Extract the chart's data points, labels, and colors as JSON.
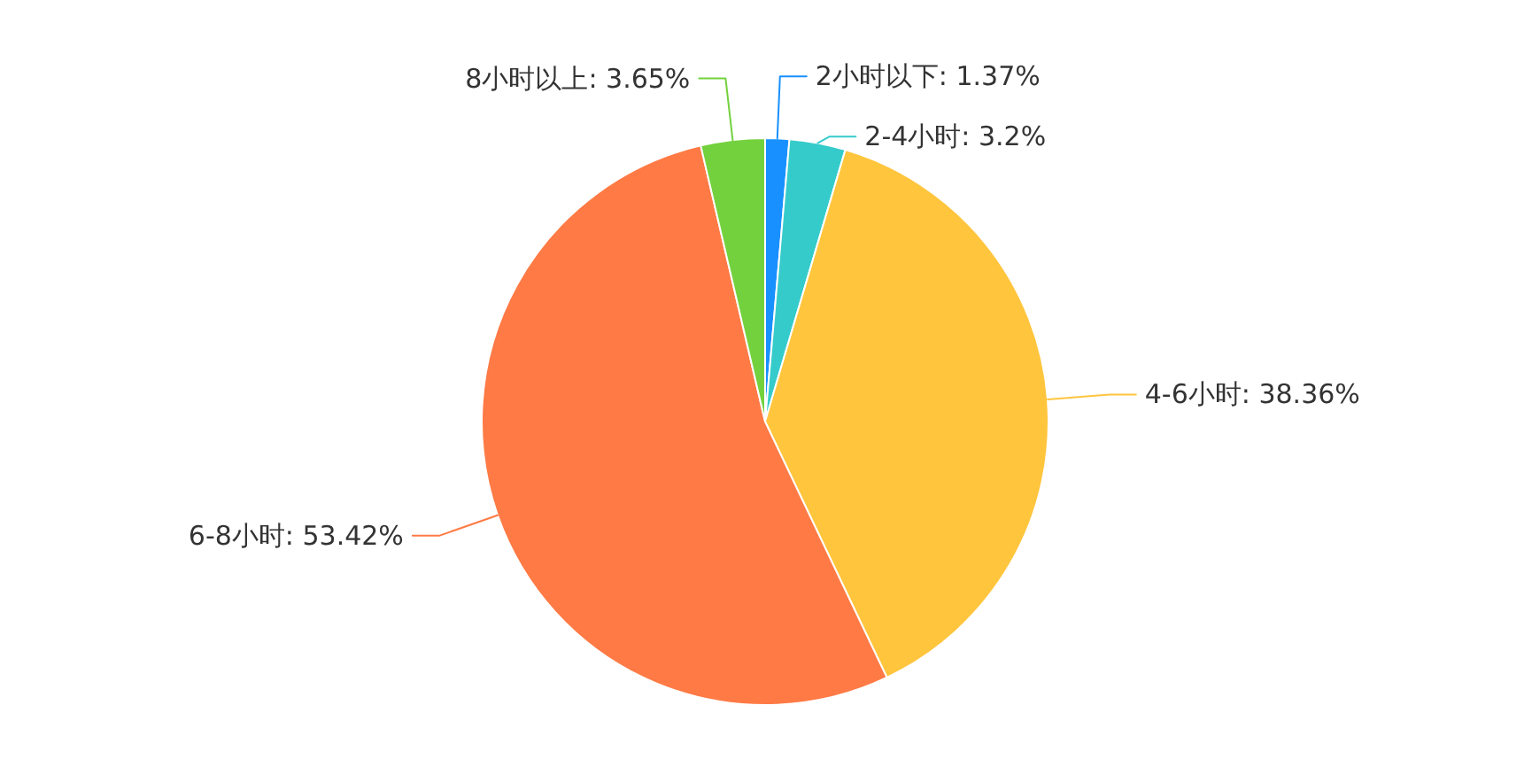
{
  "chart_data": {
    "type": "pie",
    "categories": [
      "2小时以下",
      "2-4小时",
      "4-6小时",
      "6-8小时",
      "8小时以上"
    ],
    "values": [
      1.37,
      3.2,
      38.36,
      53.42,
      3.65
    ],
    "colors": [
      "#1890ff",
      "#36cbcb",
      "#ffc53d",
      "#ff7a45",
      "#73d13d"
    ],
    "value_labels": [
      "1.37%",
      "3.2%",
      "38.36%",
      "53.42%",
      "3.65%"
    ]
  }
}
